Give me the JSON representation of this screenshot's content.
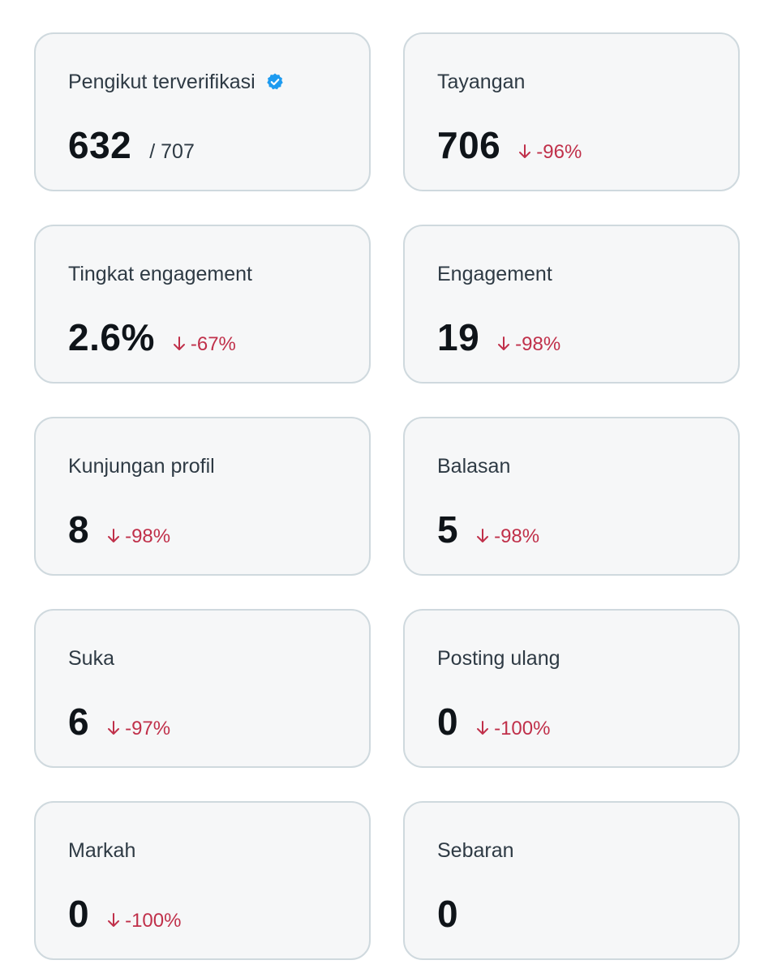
{
  "colors": {
    "card_background": "#f6f7f8",
    "card_border": "#cfd9de",
    "value_text": "#0f1419",
    "label_text": "#2e3a44",
    "negative_change": "#c0304a",
    "verified_badge": "#1d9bf0"
  },
  "cards": [
    {
      "label": "Pengikut terverifikasi",
      "value": "632",
      "total": "/ 707",
      "verified_icon": "verified-badge-icon"
    },
    {
      "label": "Tayangan",
      "value": "706",
      "change": "-96%",
      "change_icon": "arrow-down-icon"
    },
    {
      "label": "Tingkat engagement",
      "value": "2.6%",
      "change": "-67%",
      "change_icon": "arrow-down-icon"
    },
    {
      "label": "Engagement",
      "value": "19",
      "change": "-98%",
      "change_icon": "arrow-down-icon"
    },
    {
      "label": "Kunjungan profil",
      "value": "8",
      "change": "-98%",
      "change_icon": "arrow-down-icon"
    },
    {
      "label": "Balasan",
      "value": "5",
      "change": "-98%",
      "change_icon": "arrow-down-icon"
    },
    {
      "label": "Suka",
      "value": "6",
      "change": "-97%",
      "change_icon": "arrow-down-icon"
    },
    {
      "label": "Posting ulang",
      "value": "0",
      "change": "-100%",
      "change_icon": "arrow-down-icon"
    },
    {
      "label": "Markah",
      "value": "0",
      "change": "-100%",
      "change_icon": "arrow-down-icon"
    },
    {
      "label": "Sebaran",
      "value": "0"
    }
  ]
}
